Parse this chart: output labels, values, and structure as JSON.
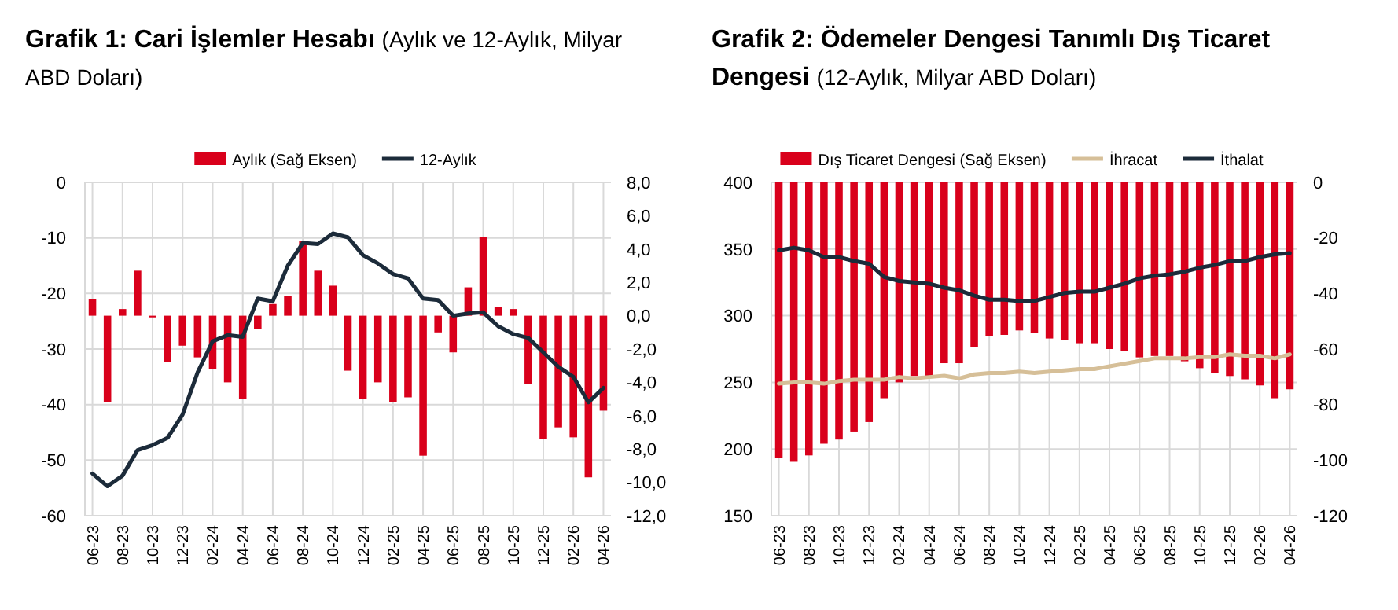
{
  "chart_data": [
    {
      "type": "bar",
      "title": "Grafik 1: Cari İşlemler Hesabı",
      "subtitle": "(Aylık ve 12-Aylık, Milyar ABD Doları)",
      "categories": [
        "06-23",
        null,
        "08-23",
        null,
        "10-23",
        null,
        "12-23",
        null,
        "02-24",
        null,
        "04-24",
        null,
        "06-24",
        null,
        "08-24",
        null,
        "10-24",
        null,
        "12-24",
        null,
        "02-25",
        null,
        "04-25",
        null,
        "06-25",
        null,
        "08-25",
        null,
        "10-25",
        null,
        "12-25",
        null,
        "02-26",
        null,
        "04-26"
      ],
      "series": [
        {
          "name": "Aylık (Sağ Eksen)",
          "axis": "y2",
          "color": "#d9001b",
          "values": [
            1.0,
            -5.2,
            0.4,
            2.7,
            -0.1,
            -2.8,
            -1.8,
            -2.5,
            -3.2,
            -4.0,
            -5.0,
            -0.8,
            0.7,
            1.2,
            4.5,
            2.7,
            1.8,
            -3.3,
            -5.0,
            -4.0,
            -5.2,
            -4.9,
            -8.4,
            -1.0,
            -2.2,
            1.7,
            4.7,
            0.5,
            0.4,
            -4.1,
            -7.4,
            -6.7,
            -7.3,
            -9.7,
            -5.7
          ]
        },
        {
          "name": "12-Aylık",
          "type": "line",
          "axis": "y",
          "color": "#1c2b3a",
          "values": [
            -52.4,
            -54.7,
            -52.8,
            -48.2,
            -47.3,
            -46.0,
            -41.8,
            -34.2,
            -28.6,
            -27.5,
            -27.8,
            -20.9,
            -21.4,
            -15.0,
            -10.9,
            -11.1,
            -9.2,
            -9.9,
            -13.1,
            -14.6,
            -16.5,
            -17.3,
            -20.9,
            -21.2,
            -24.0,
            -23.6,
            -23.4,
            -25.9,
            -27.3,
            -28.0,
            -30.6,
            -33.2,
            -35.0,
            -39.6,
            -37.0
          ]
        }
      ],
      "ylim": [
        -60,
        0
      ],
      "yticks": [
        -60,
        -50,
        -40,
        -30,
        -20,
        -10,
        0
      ],
      "y2lim": [
        -12,
        8
      ],
      "y2ticks": [
        {
          "value": -12,
          "label": "-12,0"
        },
        {
          "value": -10,
          "label": "-10,0"
        },
        {
          "value": -8,
          "label": "-8,0"
        },
        {
          "value": -6,
          "label": "-6,0"
        },
        {
          "value": -4,
          "label": "-4,0"
        },
        {
          "value": -2,
          "label": "-2,0"
        },
        {
          "value": 0,
          "label": "0,0"
        },
        {
          "value": 2,
          "label": "2,0"
        },
        {
          "value": 4,
          "label": "4,0"
        },
        {
          "value": 6,
          "label": "6,0"
        },
        {
          "value": 8,
          "label": "8,0"
        }
      ],
      "grid": true,
      "legend": "top"
    },
    {
      "type": "bar",
      "title": "Grafik 2: Ödemeler Dengesi Tanımlı Dış Ticaret Dengesi",
      "subtitle": "(12-Aylık, Milyar ABD Doları)",
      "categories": [
        "06-23",
        null,
        "08-23",
        null,
        "10-23",
        null,
        "12-23",
        null,
        "02-24",
        null,
        "04-24",
        null,
        "06-24",
        null,
        "08-24",
        null,
        "10-24",
        null,
        "12-24",
        null,
        "02-25",
        null,
        "04-25",
        null,
        "06-25",
        null,
        "08-25",
        null,
        "10-25",
        null,
        "12-25",
        null,
        "02-26",
        null,
        "04-26"
      ],
      "series": [
        {
          "name": "Dış Ticaret Dengesi (Sağ Eksen)",
          "axis": "y2",
          "color": "#d9001b",
          "values": [
            -99.2,
            -100.6,
            -98.3,
            -94.1,
            -92.6,
            -89.7,
            -86.3,
            -77.7,
            -72.0,
            -69.7,
            -69.7,
            -65.1,
            -65.1,
            -59.4,
            -55.4,
            -54.9,
            -53.3,
            -54.1,
            -56.2,
            -56.8,
            -57.9,
            -57.9,
            -60.0,
            -60.6,
            -63.0,
            -62.5,
            -62.5,
            -64.4,
            -66.9,
            -68.6,
            -69.7,
            -70.9,
            -73.1,
            -77.7,
            -74.5
          ]
        },
        {
          "name": "İhracat",
          "type": "line",
          "axis": "y",
          "color": "#d6bf98",
          "values": [
            249,
            250,
            250,
            249,
            251,
            252,
            252,
            252,
            254,
            253,
            254,
            255,
            253,
            256,
            257,
            257,
            258,
            257,
            258,
            259,
            260,
            260,
            262,
            264,
            266,
            268,
            268,
            268,
            269,
            269,
            271,
            270,
            270,
            268,
            271
          ]
        },
        {
          "name": "İthalat",
          "type": "line",
          "axis": "y",
          "color": "#1c2b3a",
          "values": [
            349,
            351,
            349,
            344,
            344,
            341,
            339,
            329,
            326,
            325,
            324,
            321,
            319,
            315,
            312,
            312,
            311,
            311,
            314,
            317,
            318,
            318,
            321,
            324,
            328,
            330,
            331,
            333,
            336,
            338,
            341,
            341,
            344,
            346,
            347
          ]
        }
      ],
      "ylim": [
        150,
        400
      ],
      "yticks": [
        150,
        200,
        250,
        300,
        350,
        400
      ],
      "y2lim": [
        -120,
        0
      ],
      "y2ticks": [
        -120,
        -100,
        -80,
        -60,
        -40,
        -20,
        0
      ],
      "grid": true,
      "legend": "top"
    }
  ]
}
